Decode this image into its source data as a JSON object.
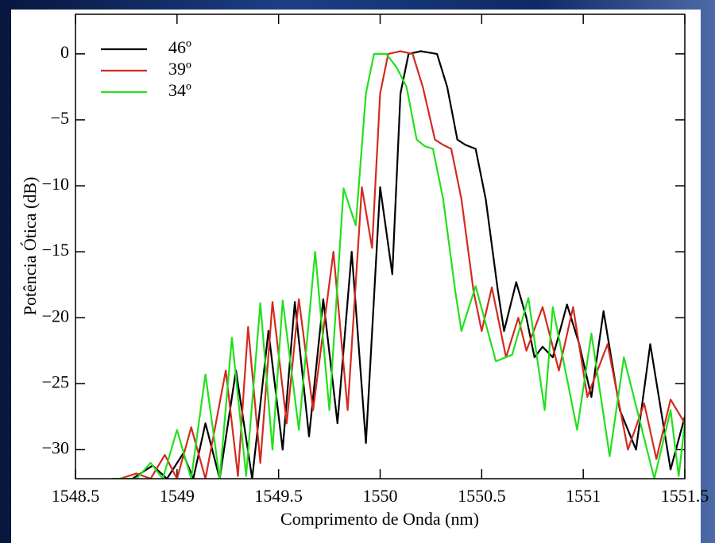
{
  "chart_data": {
    "type": "line",
    "x_label": "Comprimento de Onda (nm)",
    "y_label": "Potência Ótica (dB)",
    "xlim": [
      1548.5,
      1551.5
    ],
    "xticks": [
      1548.5,
      1549,
      1549.5,
      1550,
      1550.5,
      1551,
      1551.5
    ],
    "ylim": [
      -32.2,
      3
    ],
    "yticks": [
      {
        "value": 0,
        "label": "0"
      },
      {
        "value": -5,
        "label": "−5"
      },
      {
        "value": -10,
        "label": "−10"
      },
      {
        "value": -15,
        "label": "−15"
      },
      {
        "value": -20,
        "label": "−20"
      },
      {
        "value": -25,
        "label": "−25"
      },
      {
        "value": -30,
        "label": "−30"
      }
    ],
    "legend": "top-left",
    "series": [
      {
        "name": "46º",
        "color": "#000000",
        "x": [
          1548.78,
          1548.88,
          1548.95,
          1549.03,
          1549.08,
          1549.14,
          1549.21,
          1549.29,
          1549.37,
          1549.45,
          1549.52,
          1549.58,
          1549.65,
          1549.72,
          1549.79,
          1549.86,
          1549.93,
          1550.0,
          1550.06,
          1550.1,
          1550.14,
          1550.2,
          1550.28,
          1550.33,
          1550.38,
          1550.42,
          1550.47,
          1550.52,
          1550.58,
          1550.61,
          1550.67,
          1550.72,
          1550.76,
          1550.8,
          1550.85,
          1550.92,
          1550.98,
          1551.04,
          1551.1,
          1551.18,
          1551.26,
          1551.33,
          1551.43,
          1551.5
        ],
        "values": [
          -32.2,
          -31.2,
          -32.2,
          -30.3,
          -32.2,
          -28,
          -32.2,
          -24,
          -32.2,
          -21,
          -30,
          -18.8,
          -29,
          -18.6,
          -28,
          -15,
          -29.5,
          -10.1,
          -16.7,
          -3,
          0,
          0.2,
          0,
          -2.5,
          -6.5,
          -6.9,
          -7.2,
          -11,
          -18,
          -21,
          -17.3,
          -20,
          -23,
          -22.2,
          -23,
          -19,
          -22,
          -26,
          -19.5,
          -27,
          -30,
          -22,
          -31.5,
          -27.5
        ]
      },
      {
        "name": "39º",
        "color": "#d42a1f",
        "x": [
          1548.72,
          1548.8,
          1548.87,
          1548.94,
          1549.0,
          1549.07,
          1549.14,
          1549.24,
          1549.3,
          1549.35,
          1549.41,
          1549.47,
          1549.54,
          1549.6,
          1549.67,
          1549.77,
          1549.84,
          1549.91,
          1549.96,
          1550.0,
          1550.04,
          1550.1,
          1550.16,
          1550.21,
          1550.27,
          1550.31,
          1550.35,
          1550.4,
          1550.46,
          1550.5,
          1550.55,
          1550.62,
          1550.68,
          1550.72,
          1550.8,
          1550.88,
          1550.95,
          1551.02,
          1551.12,
          1551.22,
          1551.3,
          1551.36,
          1551.43,
          1551.5
        ],
        "values": [
          -32.2,
          -31.8,
          -32.2,
          -30.4,
          -32.2,
          -28.3,
          -32.2,
          -24,
          -32,
          -20.7,
          -31,
          -18.8,
          -28,
          -18.6,
          -27,
          -15,
          -27,
          -10.1,
          -14.7,
          -3,
          0,
          0.2,
          0,
          -2.5,
          -6.5,
          -6.9,
          -7.2,
          -11,
          -18,
          -21,
          -17.7,
          -23,
          -20,
          -22.5,
          -19.2,
          -24,
          -19.2,
          -26,
          -22,
          -30,
          -26.5,
          -30.7,
          -26.2,
          -28
        ]
      },
      {
        "name": "34º",
        "color": "#22e01c",
        "x": [
          1548.68,
          1548.75,
          1548.8,
          1548.87,
          1548.93,
          1549.0,
          1549.07,
          1549.14,
          1549.21,
          1549.27,
          1549.34,
          1549.41,
          1549.47,
          1549.52,
          1549.6,
          1549.68,
          1549.75,
          1549.82,
          1549.88,
          1549.93,
          1549.97,
          1550.03,
          1550.08,
          1550.13,
          1550.18,
          1550.22,
          1550.26,
          1550.31,
          1550.37,
          1550.4,
          1550.47,
          1550.57,
          1550.65,
          1550.73,
          1550.81,
          1550.85,
          1550.97,
          1551.04,
          1551.13,
          1551.2,
          1551.35,
          1551.43,
          1551.47,
          1551.5
        ],
        "values": [
          -32.2,
          -32.2,
          -32.2,
          -31,
          -32.2,
          -28.5,
          -32.2,
          -24.3,
          -32.2,
          -21.5,
          -32,
          -18.9,
          -30,
          -18.7,
          -28.5,
          -15,
          -27,
          -10.2,
          -13,
          -3,
          0,
          0,
          -1,
          -2.5,
          -6.5,
          -7,
          -7.2,
          -11,
          -18,
          -21,
          -17.6,
          -23.3,
          -22.8,
          -18.5,
          -27,
          -19.2,
          -28.5,
          -21.2,
          -30.5,
          -23,
          -32.2,
          -27,
          -32,
          -28
        ]
      }
    ]
  }
}
